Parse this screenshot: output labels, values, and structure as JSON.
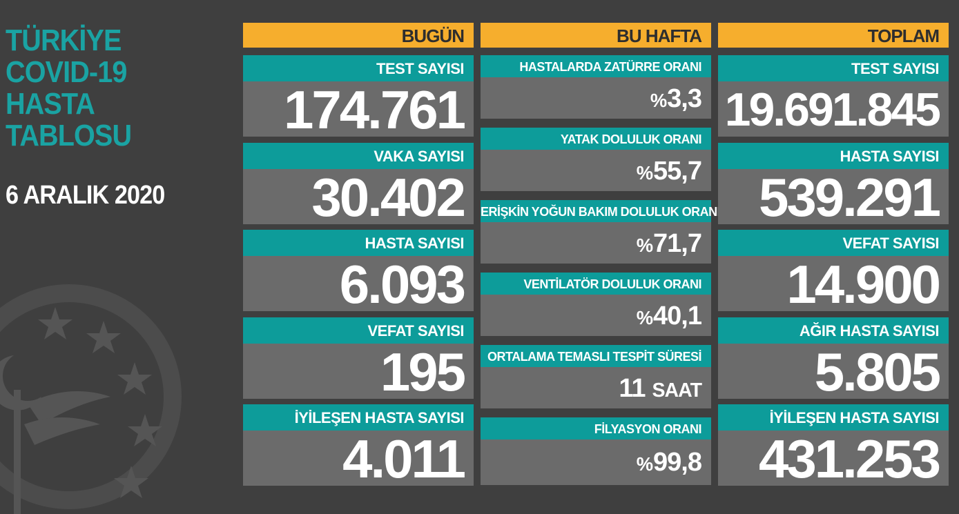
{
  "title": [
    "TÜRKİYE",
    "COVID-19",
    "HASTA",
    "TABLOSU"
  ],
  "date": "6 ARALIK 2020",
  "today": {
    "header": "BUGÜN",
    "items": [
      {
        "label": "TEST SAYISI",
        "value": "174.761"
      },
      {
        "label": "VAKA SAYISI",
        "value": "30.402"
      },
      {
        "label": "HASTA SAYISI",
        "value": "6.093"
      },
      {
        "label": "VEFAT SAYISI",
        "value": "195"
      },
      {
        "label": "İYİLEŞEN HASTA SAYISI",
        "value": "4.011"
      }
    ]
  },
  "week": {
    "header": "BU HAFTA",
    "items": [
      {
        "label": "HASTALARDA ZATÜRRE ORANI",
        "prefix": "%",
        "value": "3,3",
        "unit": ""
      },
      {
        "label": "YATAK DOLULUK ORANI",
        "prefix": "%",
        "value": "55,7",
        "unit": ""
      },
      {
        "label": "ERİŞKİN YOĞUN BAKIM DOLULUK ORANI",
        "prefix": "%",
        "value": "71,7",
        "unit": ""
      },
      {
        "label": "VENTİLATÖR DOLULUK ORANI",
        "prefix": "%",
        "value": "40,1",
        "unit": ""
      },
      {
        "label": "ORTALAMA TEMASLI TESPİT SÜRESİ",
        "prefix": "",
        "value": "11",
        "unit": "SAAT"
      },
      {
        "label": "FİLYASYON ORANI",
        "prefix": "%",
        "value": "99,8",
        "unit": ""
      }
    ]
  },
  "total": {
    "header": "TOPLAM",
    "items": [
      {
        "label": "TEST SAYISI",
        "value": "19.691.845"
      },
      {
        "label": "HASTA SAYISI",
        "value": "539.291"
      },
      {
        "label": "VEFAT SAYISI",
        "value": "14.900"
      },
      {
        "label": "AĞIR HASTA SAYISI",
        "value": "5.805"
      },
      {
        "label": "İYİLEŞEN HASTA SAYISI",
        "value": "431.253"
      }
    ]
  },
  "colors": {
    "background": "#3f3f3f",
    "title_teal": "#1aa3a3",
    "header_orange": "#f6ae2d",
    "label_teal": "#0d9c9a",
    "value_gray": "#6b6b6b"
  },
  "icons": [
    "ministry-of-health-emblem-icon"
  ]
}
